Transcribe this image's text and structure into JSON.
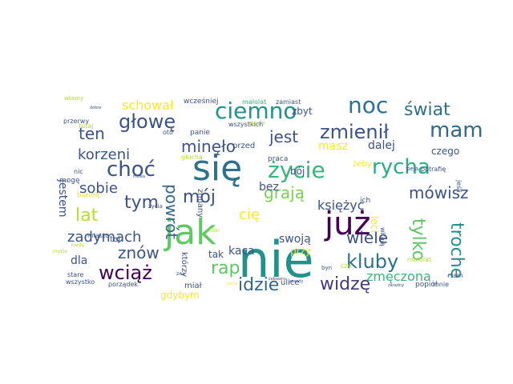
{
  "word_cloud": {
    "words": [
      {
        "text": "nie",
        "color": "#21918c"
      },
      {
        "text": "jak",
        "color": "#5ec962"
      },
      {
        "text": "się",
        "color": "#2c728e"
      },
      {
        "text": "już",
        "color": "#440154"
      },
      {
        "text": "ciemno",
        "color": "#21918c"
      },
      {
        "text": "noc",
        "color": "#2c728e"
      },
      {
        "text": "zmienił",
        "color": "#3b528b"
      },
      {
        "text": "życie",
        "color": "#35b779"
      },
      {
        "text": "choć",
        "color": "#3b528b"
      },
      {
        "text": "rycha",
        "color": "#28ae80"
      },
      {
        "text": "mam",
        "color": "#31688e"
      },
      {
        "text": "świat",
        "color": "#2c728e"
      },
      {
        "text": "głowę",
        "color": "#3b528b"
      },
      {
        "text": "wciąż",
        "color": "#440154"
      },
      {
        "text": "widzę",
        "color": "#443983"
      },
      {
        "text": "kluby",
        "color": "#2c728e"
      },
      {
        "text": "idzie",
        "color": "#31688e"
      },
      {
        "text": "wiele",
        "color": "#3b528b"
      },
      {
        "text": "tylko",
        "color": "#5ec962"
      },
      {
        "text": "trochę",
        "color": "#21918c"
      },
      {
        "text": "mówisz",
        "color": "#3b528b"
      },
      {
        "text": "lat",
        "color": "#b5de2b"
      },
      {
        "text": "tym",
        "color": "#3b528b"
      },
      {
        "text": "mój",
        "color": "#3b528b"
      },
      {
        "text": "grają",
        "color": "#7ad151"
      },
      {
        "text": "minęło",
        "color": "#3b528b"
      },
      {
        "text": "jest",
        "color": "#3b528b"
      },
      {
        "text": "powrót",
        "color": "#31688e"
      },
      {
        "text": "ten",
        "color": "#3b528b"
      },
      {
        "text": "korzeni",
        "color": "#3b528b"
      },
      {
        "text": "zadymach",
        "color": "#3b528b"
      },
      {
        "text": "sobie",
        "color": "#3b528b"
      },
      {
        "text": "rap",
        "color": "#5ec962"
      },
      {
        "text": "znów",
        "color": "#3b528b"
      },
      {
        "text": "schował",
        "color": "#fde725"
      },
      {
        "text": "księżyc",
        "color": "#3b528b"
      },
      {
        "text": "zmęczona",
        "color": "#35b779"
      },
      {
        "text": "dla",
        "color": "#3b528b"
      },
      {
        "text": "cię",
        "color": "#fde725"
      },
      {
        "text": "swoją",
        "color": "#3b528b"
      },
      {
        "text": "kaca",
        "color": "#3b528b"
      },
      {
        "text": "bez",
        "color": "#3b528b"
      },
      {
        "text": "dalej",
        "color": "#3b528b"
      },
      {
        "text": "masz",
        "color": "#fde725"
      },
      {
        "text": "zbyt",
        "color": "#3b528b"
      },
      {
        "text": "czego",
        "color": "#3b528b"
      },
      {
        "text": "gdybym",
        "color": "#fde725"
      },
      {
        "text": "tak",
        "color": "#3b528b"
      },
      {
        "text": "miał",
        "color": "#3b528b"
      },
      {
        "text": "przy",
        "color": "#fde725"
      },
      {
        "text": "leci",
        "color": "#fde725"
      },
      {
        "text": "bój",
        "color": "#3b528b"
      },
      {
        "text": "przed",
        "color": "#3b528b"
      },
      {
        "text": "ulice",
        "color": "#3b528b"
      },
      {
        "text": "jestem",
        "color": "#3b528b"
      },
      {
        "text": "tej",
        "color": "#3b528b"
      },
      {
        "text": "którzy",
        "color": "#3b528b"
      },
      {
        "text": "zmiany",
        "color": "#3b528b"
      },
      {
        "text": "wcześniej",
        "color": "#3b528b"
      },
      {
        "text": "małolat",
        "color": "#35b779"
      },
      {
        "text": "zamiast",
        "color": "#3b528b"
      },
      {
        "text": "przerwy",
        "color": "#3b528b"
      },
      {
        "text": "panie",
        "color": "#3b528b"
      },
      {
        "text": "wszystkich",
        "color": "#3b528b"
      },
      {
        "text": "głucha",
        "color": "#b5de2b"
      },
      {
        "text": "praca",
        "color": "#3b528b"
      },
      {
        "text": "potrafię",
        "color": "#3b528b"
      },
      {
        "text": "jeśli",
        "color": "#3b528b"
      },
      {
        "text": "ich",
        "color": "#3b528b"
      },
      {
        "text": "żeby",
        "color": "#fde725"
      },
      {
        "text": "witają",
        "color": "#3b528b"
      },
      {
        "text": "czy",
        "color": "#b5de2b"
      },
      {
        "text": "stare",
        "color": "#3b528b"
      },
      {
        "text": "wszystko",
        "color": "#3b528b"
      },
      {
        "text": "porządek",
        "color": "#3b528b"
      },
      {
        "text": "miasto",
        "color": "#3b528b"
      },
      {
        "text": "popiół",
        "color": "#3b528b"
      },
      {
        "text": "mnie",
        "color": "#3b528b"
      },
      {
        "text": "tam",
        "color": "#3b528b"
      },
      {
        "text": "małolat",
        "color": "#b5de2b"
      },
      {
        "text": "mogę",
        "color": "#3b528b"
      },
      {
        "text": "nic",
        "color": "#3b528b"
      },
      {
        "text": "bandę",
        "color": "#fde725"
      },
      {
        "text": "życia",
        "color": "#3b528b"
      },
      {
        "text": "własny",
        "color": "#b5de2b"
      },
      {
        "text": "tutaj",
        "color": "#b5de2b"
      },
      {
        "text": "oto",
        "color": "#3b528b"
      },
      {
        "text": "ciągle",
        "color": "#b5de2b"
      },
      {
        "text": "peja",
        "color": "#3b528b"
      },
      {
        "text": "byn",
        "color": "#3b528b"
      },
      {
        "text": "zasady",
        "color": "#3b528b"
      },
      {
        "text": "mowa",
        "color": "#3b528b"
      },
      {
        "text": "zaradny",
        "color": "#3b528b"
      },
      {
        "text": "dobre",
        "color": "#3b528b"
      },
      {
        "text": "taki",
        "color": "#b5de2b"
      },
      {
        "text": "kiedy",
        "color": "#b5de2b"
      },
      {
        "text": "myśle",
        "color": "#b5de2b"
      },
      {
        "text": "zna",
        "color": "#3b528b"
      },
      {
        "text": "zabawny",
        "color": "#3b528b"
      },
      {
        "text": "serca",
        "color": "#fde725"
      }
    ]
  }
}
